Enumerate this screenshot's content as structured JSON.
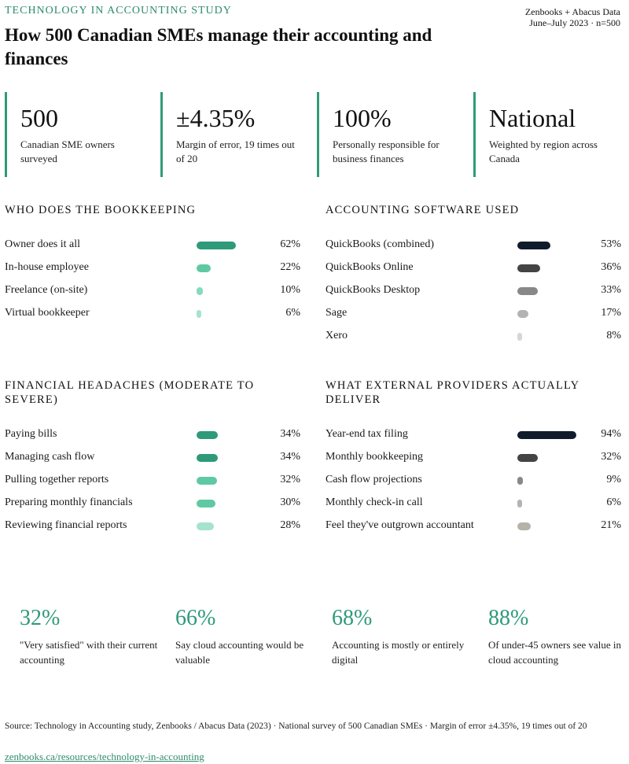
{
  "header": {
    "eyebrow": "TECHNOLOGY IN ACCOUNTING STUDY",
    "title": "How 500 Canadian SMEs manage their accounting and finances",
    "meta_line1": "Zenbooks + Abacus Data",
    "meta_line2": "June–July 2023 · n=500"
  },
  "kpis": [
    {
      "value": "500",
      "label": "Canadian SME owners surveyed"
    },
    {
      "value": "±4.35%",
      "label": "Margin of error, 19 times out of 20"
    },
    {
      "value": "100%",
      "label": "Personally responsible for business finances"
    },
    {
      "value": "National",
      "label": "Weighted by region across Canada"
    }
  ],
  "chart_data": [
    {
      "type": "bar",
      "title": "WHO DOES THE BOOKKEEPING",
      "categories": [
        "Owner does it all",
        "In-house employee",
        "Freelance (on-site)",
        "Virtual bookkeeper"
      ],
      "values": [
        62,
        22,
        10,
        6
      ],
      "value_labels": [
        "62%",
        "22%",
        "10%",
        "6%"
      ],
      "colors": [
        "#2e9a79",
        "#5ec9a3",
        "#86dbbd",
        "#a5e3cc"
      ],
      "xlim": [
        0,
        100
      ]
    },
    {
      "type": "bar",
      "title": "ACCOUNTING SOFTWARE USED",
      "categories": [
        "QuickBooks (combined)",
        "QuickBooks Online",
        "QuickBooks Desktop",
        "Sage",
        "Xero"
      ],
      "values": [
        53,
        36,
        33,
        17,
        8
      ],
      "value_labels": [
        "53%",
        "36%",
        "33%",
        "17%",
        "8%"
      ],
      "colors": [
        "#101c2c",
        "#444444",
        "#888888",
        "#b3b3b3",
        "#d6d6d6"
      ],
      "xlim": [
        0,
        100
      ]
    },
    {
      "type": "bar",
      "title": "FINANCIAL HEADACHES (MODERATE TO SEVERE)",
      "categories": [
        "Paying bills",
        "Managing cash flow",
        "Pulling together reports",
        "Preparing monthly financials",
        "Reviewing financial reports"
      ],
      "values": [
        34,
        34,
        32,
        30,
        28
      ],
      "value_labels": [
        "34%",
        "34%",
        "32%",
        "30%",
        "28%"
      ],
      "colors": [
        "#2e9a79",
        "#2e9a79",
        "#5ec9a3",
        "#5ec9a3",
        "#a5e3cc"
      ],
      "xlim": [
        0,
        100
      ]
    },
    {
      "type": "bar",
      "title": "WHAT EXTERNAL PROVIDERS ACTUALLY DELIVER",
      "categories": [
        "Year-end tax filing",
        "Monthly bookkeeping",
        "Cash flow projections",
        "Monthly check-in call",
        "Feel they've outgrown accountant"
      ],
      "values": [
        94,
        32,
        9,
        6,
        21
      ],
      "value_labels": [
        "94%",
        "32%",
        "9%",
        "6%",
        "21%"
      ],
      "colors": [
        "#101c2c",
        "#444444",
        "#888888",
        "#b3b3b3",
        "#b5b3a9"
      ],
      "xlim": [
        0,
        100
      ]
    }
  ],
  "stats": [
    {
      "value": "32%",
      "label": "\"Very satisfied\" with their current accounting"
    },
    {
      "value": "66%",
      "label": "Say cloud accounting would be valuable"
    },
    {
      "value": "68%",
      "label": "Accounting is mostly or entirely digital"
    },
    {
      "value": "88%",
      "label": "Of under-45 owners see value in cloud accounting"
    }
  ],
  "footer": {
    "source": "Source: Technology in Accounting study, Zenbooks / Abacus Data (2023) · National survey of 500 Canadian SMEs · Margin of error ±4.35%, 19 times out of 20",
    "link": "zenbooks.ca/resources/technology-in-accounting"
  }
}
